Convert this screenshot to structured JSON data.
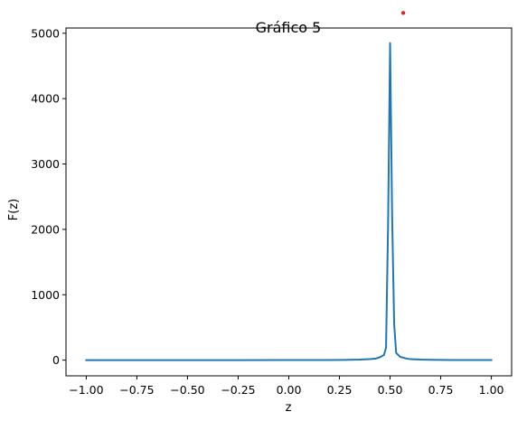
{
  "chart_data": {
    "type": "line",
    "title": "Gráfico 5",
    "xlabel": "z",
    "ylabel": "F(z)",
    "xlim": [
      -1.1,
      1.1
    ],
    "ylim": [
      -240,
      5080
    ],
    "xticks": [
      -1.0,
      -0.75,
      -0.5,
      -0.25,
      0.0,
      0.25,
      0.5,
      0.75,
      1.0
    ],
    "xtick_labels": [
      "−1.00",
      "−0.75",
      "−0.50",
      "−0.25",
      "0.00",
      "0.25",
      "0.50",
      "0.75",
      "1.00"
    ],
    "yticks": [
      0,
      1000,
      2000,
      3000,
      4000,
      5000
    ],
    "ytick_labels": [
      "0",
      "1000",
      "2000",
      "3000",
      "4000",
      "5000"
    ],
    "grid": false,
    "series": [
      {
        "color": "#1f77b4",
        "x": [
          -1.0,
          -0.75,
          -0.5,
          -0.25,
          0.0,
          0.2,
          0.3,
          0.35,
          0.4,
          0.43,
          0.45,
          0.47,
          0.48,
          0.49,
          0.5,
          0.51,
          0.52,
          0.53,
          0.55,
          0.58,
          0.6,
          0.65,
          0.7,
          0.8,
          1.0
        ],
        "y": [
          0,
          0,
          0,
          0,
          1,
          2,
          5,
          8,
          15,
          25,
          45,
          80,
          190,
          2050,
          4850,
          2200,
          560,
          110,
          50,
          25,
          15,
          8,
          5,
          2,
          1
        ]
      }
    ],
    "annotations": [
      {
        "type": "point",
        "color": "#d62728",
        "x": 0.565,
        "y": 5310
      }
    ]
  }
}
